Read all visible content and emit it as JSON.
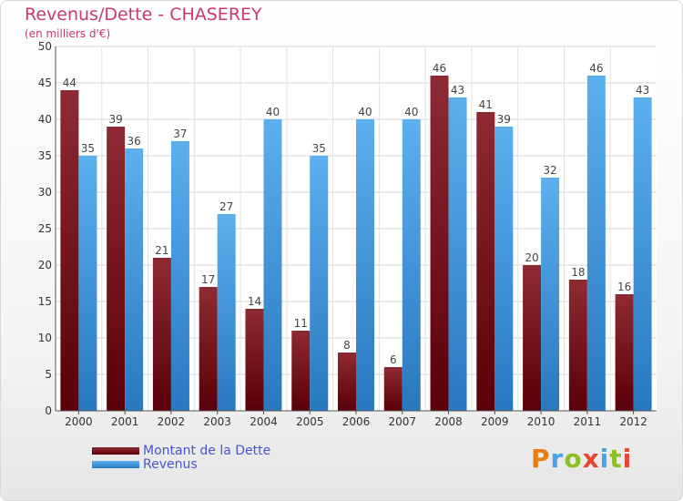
{
  "header": {
    "title": "Revenus/Dette - CHASEREY",
    "subtitle": "(en milliers d'€)"
  },
  "legend": {
    "items": [
      {
        "label": "Montant de la Dette",
        "color": "#7a0a14"
      },
      {
        "label": "Revenus",
        "color": "#4aa3e6"
      }
    ]
  },
  "logo": {
    "text": "Proxiti",
    "colors": [
      "#e87d12",
      "#4aa3e6",
      "#8fbf26",
      "#e8452e",
      "#4aa3e6",
      "#8fbf26",
      "#e8452e"
    ]
  },
  "chart_data": {
    "type": "bar",
    "title": "Revenus/Dette - CHASEREY",
    "subtitle": "(en milliers d'€)",
    "categories": [
      "2000",
      "2001",
      "2002",
      "2003",
      "2004",
      "2005",
      "2006",
      "2007",
      "2008",
      "2009",
      "2010",
      "2011",
      "2012"
    ],
    "series": [
      {
        "name": "Montant de la Dette",
        "color": "#7a0a14",
        "values": [
          44,
          39,
          21,
          17,
          14,
          11,
          8,
          6,
          46,
          41,
          20,
          18,
          16
        ]
      },
      {
        "name": "Revenus",
        "color": "#4aa3e6",
        "values": [
          35,
          36,
          37,
          27,
          40,
          35,
          40,
          40,
          43,
          39,
          32,
          46,
          43
        ]
      }
    ],
    "ylim": [
      0,
      50
    ],
    "yticks": [
      0,
      5,
      10,
      15,
      20,
      25,
      30,
      35,
      40,
      45,
      50
    ],
    "grid": true,
    "legend_position": "bottom-left",
    "data_labels": true
  }
}
